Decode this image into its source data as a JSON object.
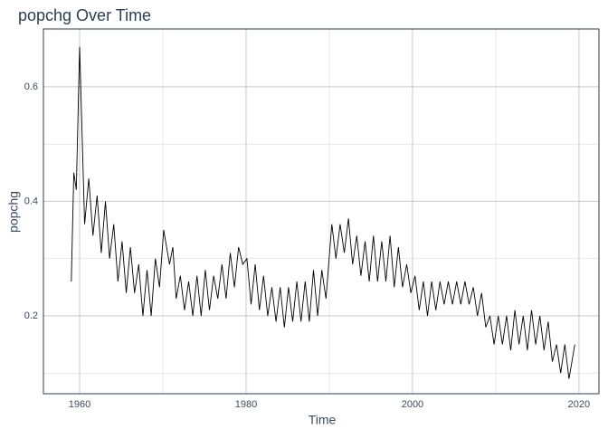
{
  "chart_data": {
    "type": "line",
    "title": "popchg Over Time",
    "x_label": "Time",
    "y_label": "popchg",
    "x": [
      1959.0,
      1959.3,
      1959.6,
      1960.0,
      1960.6,
      1961.1,
      1961.6,
      1962.1,
      1962.6,
      1963.1,
      1963.6,
      1964.1,
      1964.6,
      1965.1,
      1965.6,
      1966.1,
      1966.6,
      1967.1,
      1967.6,
      1968.1,
      1968.6,
      1969.1,
      1969.6,
      1970.1,
      1970.8,
      1971.2,
      1971.6,
      1972.1,
      1972.6,
      1973.1,
      1973.6,
      1974.1,
      1974.6,
      1975.1,
      1975.6,
      1976.1,
      1976.6,
      1977.1,
      1977.6,
      1978.1,
      1978.6,
      1979.1,
      1979.6,
      1980.1,
      1980.6,
      1981.1,
      1981.6,
      1982.1,
      1982.6,
      1983.1,
      1983.6,
      1984.1,
      1984.6,
      1985.1,
      1985.6,
      1986.1,
      1986.6,
      1987.1,
      1987.6,
      1988.1,
      1988.6,
      1989.1,
      1989.6,
      1990.3,
      1990.8,
      1991.3,
      1991.8,
      1992.3,
      1992.8,
      1993.3,
      1993.8,
      1994.3,
      1994.8,
      1995.3,
      1995.8,
      1996.3,
      1996.8,
      1997.3,
      1997.8,
      1998.3,
      1998.8,
      1999.3,
      1999.8,
      2000.3,
      2000.8,
      2001.3,
      2001.8,
      2002.3,
      2002.8,
      2003.3,
      2003.8,
      2004.3,
      2004.8,
      2005.3,
      2005.8,
      2006.3,
      2006.8,
      2007.3,
      2007.8,
      2008.3,
      2008.8,
      2009.3,
      2009.8,
      2010.3,
      2010.8,
      2011.3,
      2011.8,
      2012.3,
      2012.8,
      2013.3,
      2013.8,
      2014.3,
      2014.8,
      2015.3,
      2015.8,
      2016.3,
      2016.8,
      2017.3,
      2017.8,
      2018.3,
      2018.8,
      2019.5
    ],
    "series": [
      {
        "name": "popchg",
        "color": "#000000",
        "values": [
          0.26,
          0.45,
          0.42,
          0.67,
          0.36,
          0.44,
          0.34,
          0.41,
          0.31,
          0.4,
          0.3,
          0.36,
          0.26,
          0.33,
          0.24,
          0.32,
          0.24,
          0.29,
          0.2,
          0.28,
          0.2,
          0.3,
          0.25,
          0.35,
          0.29,
          0.32,
          0.23,
          0.27,
          0.21,
          0.26,
          0.2,
          0.27,
          0.2,
          0.28,
          0.21,
          0.27,
          0.23,
          0.29,
          0.23,
          0.31,
          0.25,
          0.32,
          0.29,
          0.3,
          0.22,
          0.29,
          0.21,
          0.27,
          0.2,
          0.25,
          0.19,
          0.25,
          0.18,
          0.25,
          0.19,
          0.26,
          0.19,
          0.26,
          0.19,
          0.28,
          0.2,
          0.28,
          0.23,
          0.36,
          0.3,
          0.36,
          0.31,
          0.37,
          0.29,
          0.34,
          0.27,
          0.33,
          0.26,
          0.34,
          0.26,
          0.33,
          0.26,
          0.34,
          0.25,
          0.32,
          0.25,
          0.29,
          0.24,
          0.27,
          0.21,
          0.26,
          0.2,
          0.26,
          0.21,
          0.26,
          0.22,
          0.26,
          0.22,
          0.26,
          0.22,
          0.26,
          0.22,
          0.25,
          0.2,
          0.24,
          0.18,
          0.2,
          0.15,
          0.2,
          0.15,
          0.2,
          0.14,
          0.21,
          0.15,
          0.2,
          0.14,
          0.21,
          0.15,
          0.2,
          0.14,
          0.19,
          0.12,
          0.15,
          0.1,
          0.15,
          0.09,
          0.15
        ]
      }
    ],
    "xlim": [
      1955.65,
      2022.4
    ],
    "ylim": [
      0.064,
      0.701
    ],
    "xticks": [
      1960,
      1980,
      2000,
      2020
    ],
    "yticks": [
      0.2,
      0.4,
      0.6
    ],
    "x_minor_ticks": [
      1970,
      1990,
      2010
    ],
    "y_minor_ticks": [
      0.1,
      0.3,
      0.5
    ],
    "grid": true
  }
}
